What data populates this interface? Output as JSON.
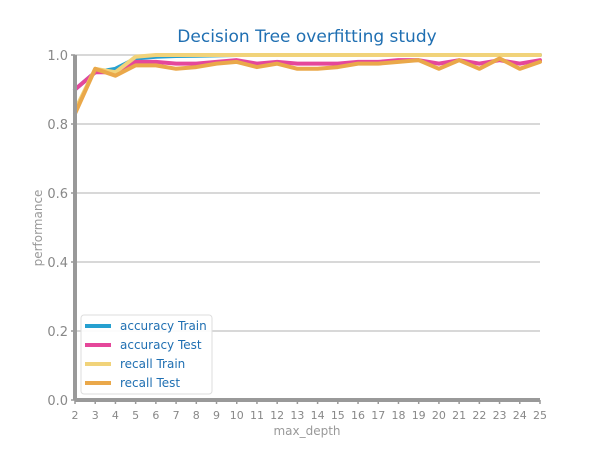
{
  "chart_data": {
    "type": "line",
    "title": "Decision Tree overfitting study",
    "xlabel": "max_depth",
    "ylabel": "performance",
    "x": [
      2,
      3,
      4,
      5,
      6,
      7,
      8,
      9,
      10,
      11,
      12,
      13,
      14,
      15,
      16,
      17,
      18,
      19,
      20,
      21,
      22,
      23,
      24,
      25
    ],
    "x_ticks": [
      "2",
      "3",
      "4",
      "5",
      "6",
      "7",
      "8",
      "9",
      "10",
      "11",
      "12",
      "13",
      "14",
      "15",
      "16",
      "17",
      "18",
      "19",
      "20",
      "21",
      "22",
      "23",
      "24",
      "25"
    ],
    "ylim": [
      0,
      1
    ],
    "y_ticks": [
      "0.0",
      "0.2",
      "0.4",
      "0.6",
      "0.8",
      "1.0"
    ],
    "grid": "horizontal",
    "legend_position": "bottom-left",
    "series": [
      {
        "name": "accuracy Train",
        "color": "#26a0d0",
        "values": [
          0.9,
          0.95,
          0.96,
          0.99,
          0.995,
          0.997,
          0.998,
          0.999,
          1.0,
          1.0,
          1.0,
          1.0,
          1.0,
          1.0,
          1.0,
          1.0,
          1.0,
          1.0,
          1.0,
          1.0,
          1.0,
          1.0,
          1.0,
          1.0
        ]
      },
      {
        "name": "accuracy Test",
        "color": "#e5479a",
        "values": [
          0.9,
          0.95,
          0.95,
          0.98,
          0.98,
          0.975,
          0.975,
          0.98,
          0.985,
          0.975,
          0.98,
          0.975,
          0.975,
          0.975,
          0.98,
          0.98,
          0.985,
          0.985,
          0.975,
          0.985,
          0.975,
          0.985,
          0.975,
          0.985
        ]
      },
      {
        "name": "recall Train",
        "color": "#f1d37a",
        "values": [
          0.84,
          0.96,
          0.95,
          0.995,
          1.0,
          1.0,
          1.0,
          1.0,
          1.0,
          1.0,
          1.0,
          1.0,
          1.0,
          1.0,
          1.0,
          1.0,
          1.0,
          1.0,
          1.0,
          1.0,
          1.0,
          1.0,
          1.0,
          1.0
        ]
      },
      {
        "name": "recall Test",
        "color": "#eaa84a",
        "values": [
          0.83,
          0.96,
          0.94,
          0.97,
          0.97,
          0.96,
          0.965,
          0.975,
          0.98,
          0.965,
          0.975,
          0.96,
          0.96,
          0.965,
          0.975,
          0.975,
          0.98,
          0.985,
          0.96,
          0.985,
          0.96,
          0.99,
          0.96,
          0.98
        ]
      }
    ]
  }
}
